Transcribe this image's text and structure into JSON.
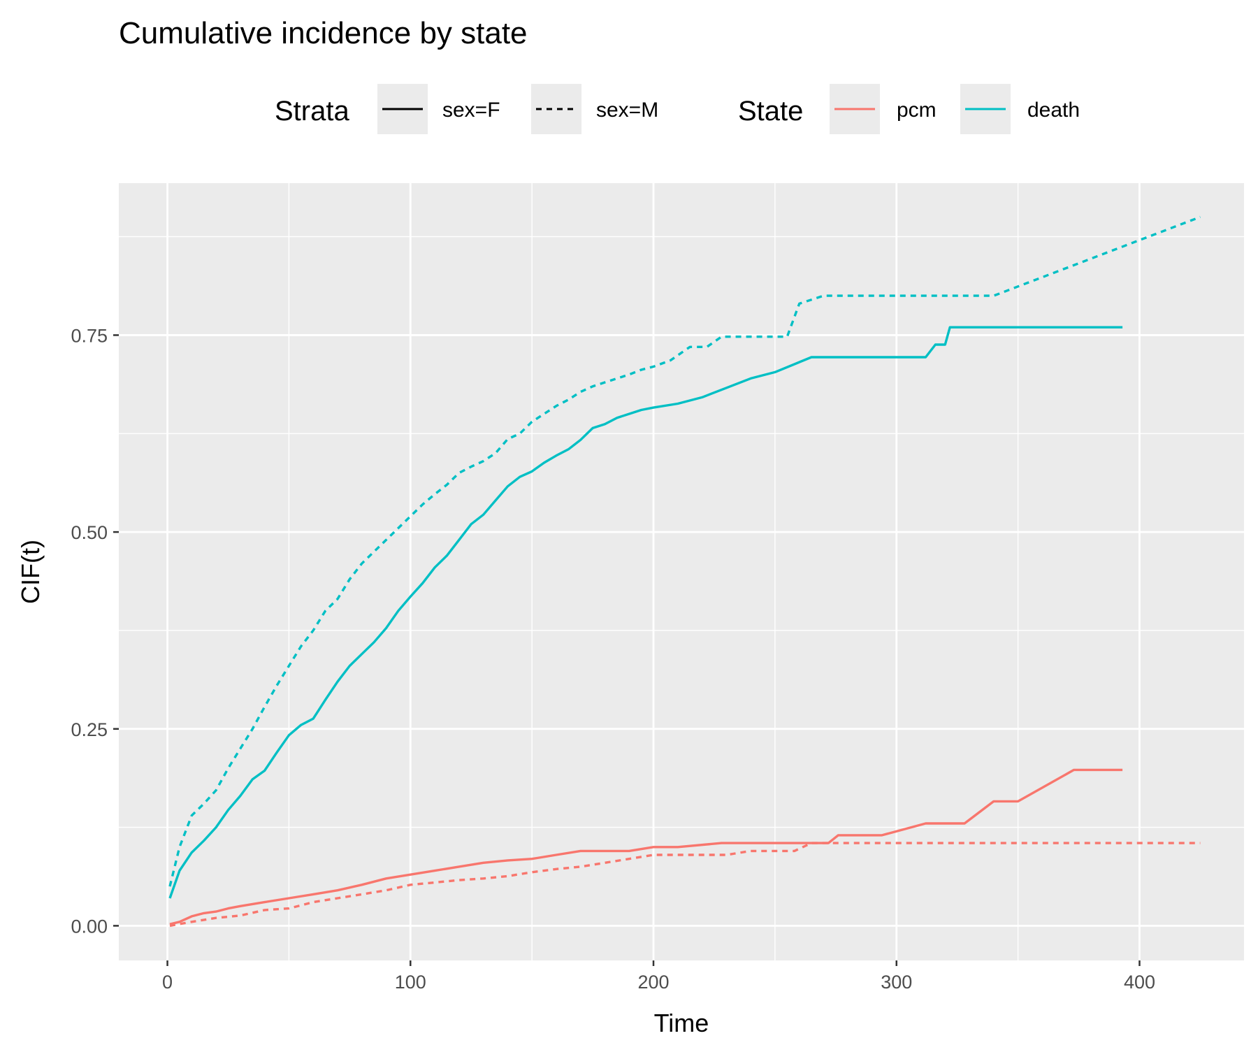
{
  "chart_data": {
    "type": "line",
    "title": "Cumulative incidence by state",
    "xlabel": "Time",
    "ylabel": "CIF(t)",
    "xlim": [
      -20,
      443
    ],
    "ylim": [
      -0.044,
      0.943
    ],
    "x_ticks": [
      0,
      100,
      200,
      300,
      400
    ],
    "x_tick_labels": [
      "0",
      "100",
      "200",
      "300",
      "400"
    ],
    "y_ticks": [
      0,
      0.25,
      0.5,
      0.75
    ],
    "y_tick_labels": [
      "0.00",
      "0.25",
      "0.50",
      "0.75"
    ],
    "grid": true,
    "legend_position": "top",
    "legend": {
      "strata": {
        "title": "Strata",
        "items": [
          {
            "label": "sex=F",
            "linetype": "solid"
          },
          {
            "label": "sex=M",
            "linetype": "dashed"
          }
        ]
      },
      "state": {
        "title": "State",
        "items": [
          {
            "label": "pcm",
            "color": "#F8766D"
          },
          {
            "label": "death",
            "color": "#00BFC4"
          }
        ]
      }
    },
    "series": [
      {
        "strata": "sex=F",
        "state": "death",
        "color": "#00BFC4",
        "linetype": "solid",
        "x": [
          1,
          5,
          10,
          15,
          20,
          25,
          30,
          35,
          40,
          45,
          50,
          55,
          60,
          65,
          70,
          75,
          80,
          85,
          90,
          95,
          100,
          105,
          110,
          115,
          120,
          125,
          130,
          135,
          140,
          145,
          150,
          155,
          160,
          165,
          170,
          175,
          180,
          185,
          190,
          195,
          200,
          210,
          220,
          230,
          240,
          250,
          265,
          280,
          300,
          312,
          316,
          320,
          322,
          340,
          360,
          393
        ],
        "y": [
          0.035,
          0.07,
          0.093,
          0.108,
          0.125,
          0.147,
          0.165,
          0.186,
          0.197,
          0.22,
          0.242,
          0.255,
          0.263,
          0.287,
          0.31,
          0.33,
          0.345,
          0.36,
          0.378,
          0.4,
          0.418,
          0.435,
          0.455,
          0.47,
          0.49,
          0.51,
          0.522,
          0.54,
          0.558,
          0.57,
          0.577,
          0.588,
          0.597,
          0.605,
          0.617,
          0.632,
          0.637,
          0.645,
          0.65,
          0.655,
          0.658,
          0.663,
          0.671,
          0.683,
          0.695,
          0.703,
          0.722,
          0.722,
          0.722,
          0.722,
          0.738,
          0.738,
          0.76,
          0.76,
          0.76,
          0.76
        ]
      },
      {
        "strata": "sex=M",
        "state": "death",
        "color": "#00BFC4",
        "linetype": "dashed",
        "x": [
          1,
          5,
          10,
          15,
          20,
          25,
          30,
          35,
          40,
          45,
          50,
          55,
          60,
          65,
          70,
          75,
          80,
          85,
          90,
          95,
          100,
          105,
          110,
          115,
          120,
          125,
          130,
          135,
          140,
          145,
          150,
          155,
          160,
          165,
          170,
          175,
          180,
          185,
          190,
          195,
          200,
          207,
          215,
          222,
          228,
          235,
          255,
          260,
          270,
          300,
          340,
          425
        ],
        "y": [
          0.05,
          0.1,
          0.14,
          0.155,
          0.172,
          0.2,
          0.225,
          0.25,
          0.278,
          0.305,
          0.33,
          0.355,
          0.375,
          0.4,
          0.415,
          0.44,
          0.46,
          0.475,
          0.49,
          0.505,
          0.52,
          0.535,
          0.548,
          0.56,
          0.575,
          0.583,
          0.59,
          0.6,
          0.618,
          0.625,
          0.64,
          0.65,
          0.66,
          0.668,
          0.678,
          0.685,
          0.69,
          0.695,
          0.7,
          0.706,
          0.71,
          0.718,
          0.735,
          0.735,
          0.748,
          0.748,
          0.748,
          0.79,
          0.8,
          0.8,
          0.8,
          0.9
        ]
      },
      {
        "strata": "sex=F",
        "state": "pcm",
        "color": "#F8766D",
        "linetype": "solid",
        "x": [
          1,
          5,
          10,
          15,
          20,
          25,
          30,
          40,
          50,
          60,
          70,
          80,
          90,
          100,
          110,
          120,
          130,
          140,
          150,
          160,
          170,
          180,
          190,
          200,
          210,
          228,
          240,
          260,
          272,
          276,
          294,
          312,
          328,
          340,
          350,
          373,
          393
        ],
        "y": [
          0.002,
          0.005,
          0.012,
          0.016,
          0.018,
          0.022,
          0.025,
          0.03,
          0.035,
          0.04,
          0.045,
          0.052,
          0.06,
          0.065,
          0.07,
          0.075,
          0.08,
          0.083,
          0.085,
          0.09,
          0.095,
          0.095,
          0.095,
          0.1,
          0.1,
          0.105,
          0.105,
          0.105,
          0.105,
          0.115,
          0.115,
          0.13,
          0.13,
          0.158,
          0.158,
          0.198,
          0.198
        ]
      },
      {
        "strata": "sex=M",
        "state": "pcm",
        "color": "#F8766D",
        "linetype": "dashed",
        "x": [
          1,
          10,
          20,
          30,
          40,
          50,
          60,
          70,
          80,
          90,
          100,
          110,
          120,
          130,
          140,
          150,
          160,
          170,
          180,
          190,
          200,
          215,
          230,
          240,
          258,
          265,
          300,
          425
        ],
        "y": [
          0,
          0.005,
          0.01,
          0.013,
          0.02,
          0.022,
          0.03,
          0.035,
          0.04,
          0.045,
          0.052,
          0.055,
          0.058,
          0.06,
          0.063,
          0.068,
          0.072,
          0.075,
          0.08,
          0.085,
          0.09,
          0.09,
          0.09,
          0.095,
          0.095,
          0.105,
          0.105,
          0.105
        ]
      }
    ]
  }
}
